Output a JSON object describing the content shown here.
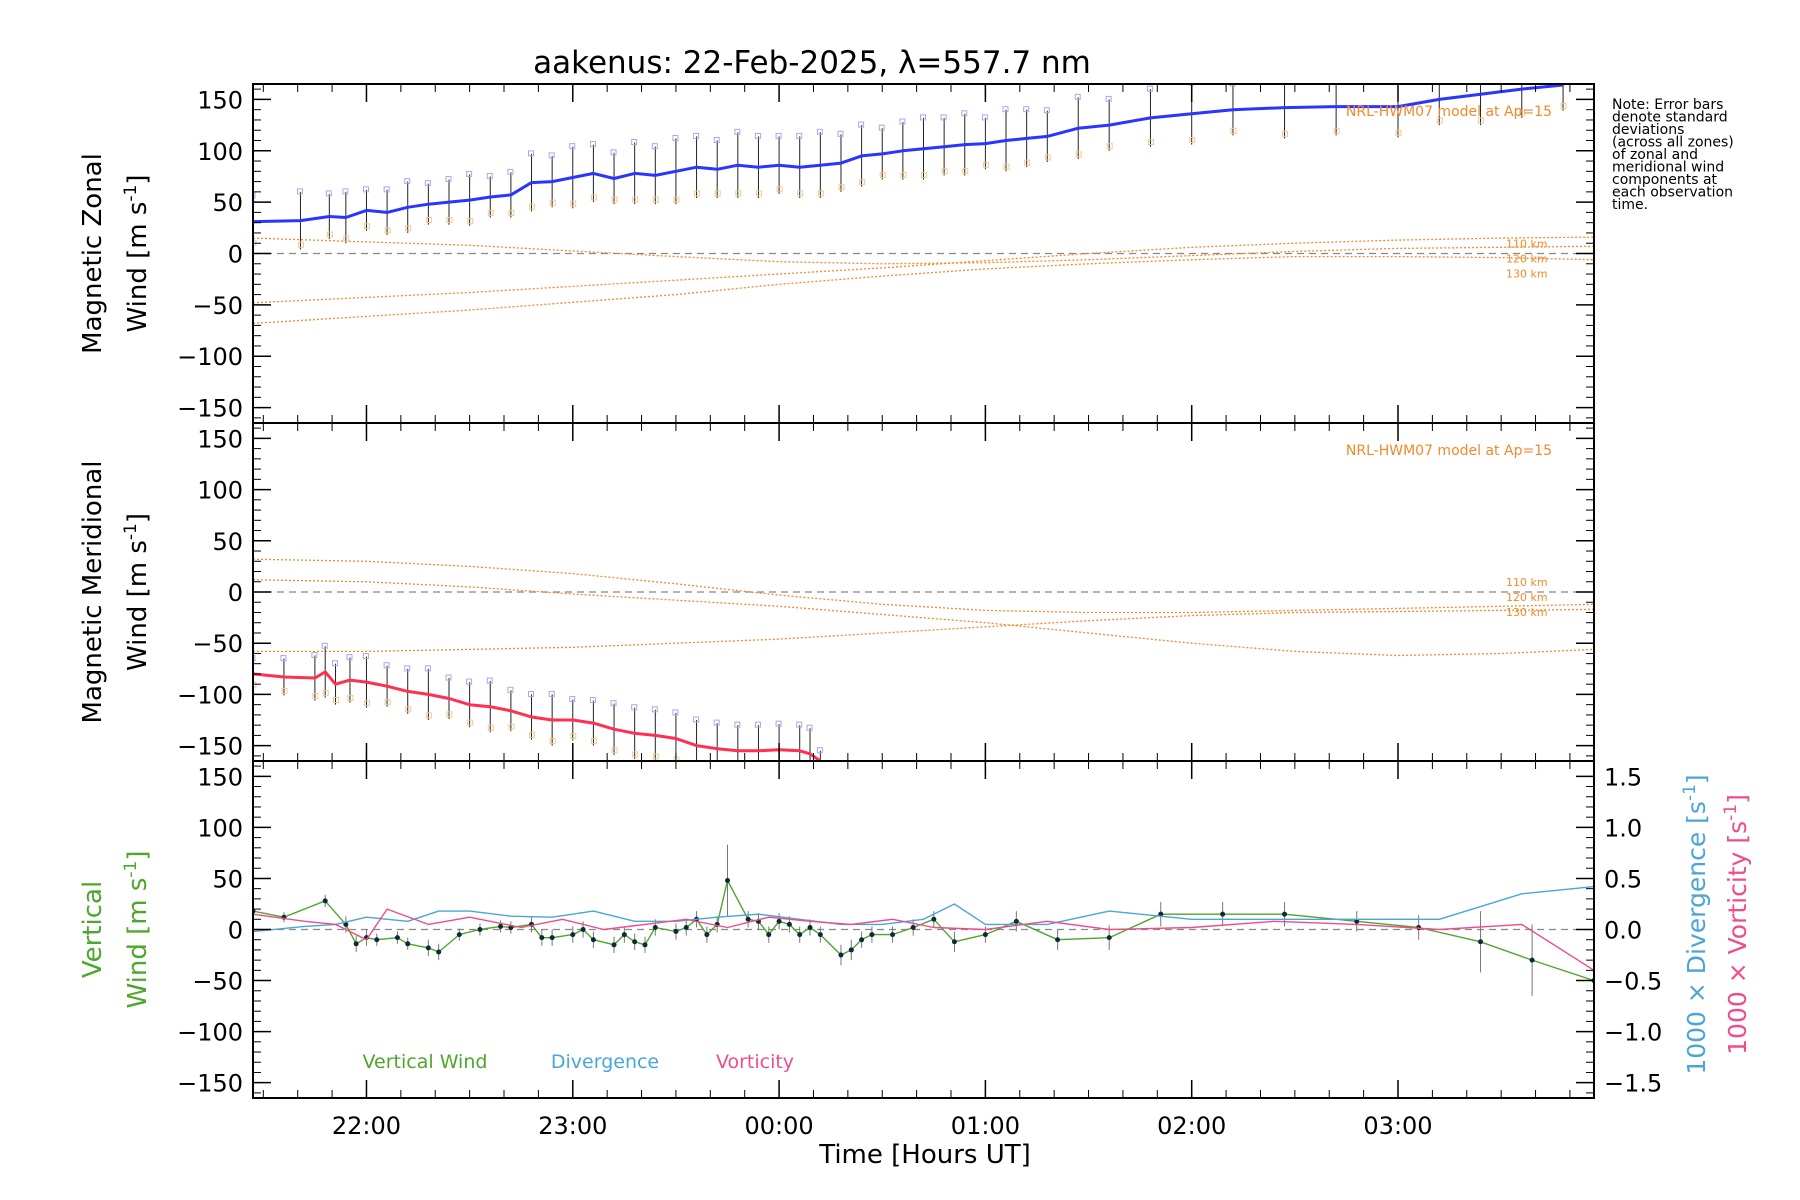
{
  "chart_data": {
    "title": "aakenus: 22-Feb-2025, λ=557.7 nm",
    "type": "line",
    "note": [
      "Note: Error bars",
      "denote standard",
      "deviations",
      "(across all zones)",
      "of zonal and",
      "meridional wind",
      "components at",
      "each observation",
      "time."
    ],
    "xlabel": "Time [Hours UT]",
    "xlim": [
      21.45,
      27.95
    ],
    "x_ticks": [
      {
        "value": 22,
        "label": "22:00"
      },
      {
        "value": 23,
        "label": "23:00"
      },
      {
        "value": 24,
        "label": "00:00"
      },
      {
        "value": 25,
        "label": "01:00"
      },
      {
        "value": 26,
        "label": "02:00"
      },
      {
        "value": 27,
        "label": "03:00"
      }
    ],
    "ylim": [
      -165,
      165
    ],
    "y_ticks": [
      150,
      100,
      50,
      0,
      -50,
      -100,
      -150
    ],
    "y_tick_labels": [
      "150",
      "100",
      "50",
      "0",
      "−50",
      "−100",
      "−150"
    ],
    "colors": {
      "zonal": "#2a35ff",
      "meridional": "#ff3050",
      "model": "#f08a2c",
      "vertical": "#4ea62c",
      "divergence": "#4aa6d6",
      "vorticity": "#ee4c8c",
      "zero": "#888888"
    },
    "panels": [
      {
        "name": "zonal",
        "ylabel_line1": "Magnetic Zonal",
        "ylabel_line2": "Wind [m s",
        "ylabel_sup": "-1",
        "ylabel_close": "]",
        "model_label": "NRL-HWM07 model at Ap=15",
        "model_altitudes": [
          "110 km",
          "120 km",
          "130 km"
        ],
        "model_curves": [
          {
            "name": "110 km",
            "x": [
              21.45,
              22.5,
              23.5,
              24.0,
              24.5,
              25.0,
              25.5,
              26.0,
              26.5,
              27.0,
              27.5,
              27.95
            ],
            "values": [
              15,
              8,
              -3,
              -8,
              -10,
              -9,
              -6,
              -2,
              2,
              5,
              6,
              7
            ]
          },
          {
            "name": "120 km",
            "x": [
              21.45,
              22.5,
              23.5,
              24.0,
              24.5,
              25.0,
              25.5,
              26.0,
              26.5,
              27.0,
              27.5,
              27.95
            ],
            "values": [
              -48,
              -38,
              -26,
              -20,
              -14,
              -7,
              0,
              6,
              10,
              13,
              15,
              16
            ]
          },
          {
            "name": "130 km",
            "x": [
              21.45,
              22.5,
              23.5,
              24.0,
              24.5,
              25.0,
              25.5,
              26.0,
              26.5,
              27.0,
              27.5,
              27.95
            ],
            "values": [
              -68,
              -55,
              -40,
              -30,
              -22,
              -15,
              -10,
              -6,
              -3,
              -3,
              -4,
              -6
            ]
          }
        ],
        "series": [
          {
            "name": "Magnetic Zonal Wind",
            "x": [
              21.45,
              21.68,
              21.82,
              21.9,
              22.0,
              22.1,
              22.2,
              22.3,
              22.4,
              22.5,
              22.6,
              22.7,
              22.8,
              22.9,
              23.0,
              23.1,
              23.2,
              23.3,
              23.4,
              23.5,
              23.6,
              23.7,
              23.8,
              23.9,
              24.0,
              24.1,
              24.2,
              24.3,
              24.4,
              24.5,
              24.6,
              24.7,
              24.8,
              24.9,
              25.0,
              25.1,
              25.2,
              25.3,
              25.45,
              25.6,
              25.8,
              26.0,
              26.2,
              26.45,
              26.7,
              27.0,
              27.2,
              27.4,
              27.6,
              27.8
            ],
            "values": [
              31,
              32,
              36,
              35,
              42,
              40,
              45,
              48,
              50,
              52,
              55,
              57,
              69,
              70,
              74,
              78,
              73,
              78,
              76,
              80,
              84,
              82,
              86,
              84,
              86,
              84,
              86,
              88,
              95,
              97,
              100,
              102,
              104,
              106,
              107,
              110,
              112,
              114,
              122,
              125,
              132,
              136,
              140,
              142,
              143,
              143,
              150,
              155,
              160,
              164
            ],
            "yerr": [
              25,
              28,
              22,
              25,
              20,
              22,
              25,
              20,
              22,
              25,
              20,
              22,
              28,
              25,
              30,
              28,
              25,
              30,
              28,
              32,
              30,
              28,
              32,
              30,
              28,
              30,
              32,
              28,
              30,
              25,
              28,
              30,
              28,
              30,
              25,
              30,
              28,
              25,
              30,
              25,
              28,
              30,
              25,
              30,
              28,
              30,
              25,
              30,
              28,
              25
            ]
          }
        ]
      },
      {
        "name": "meridional",
        "ylabel_line1": "Magnetic Meridional",
        "ylabel_line2": "Wind [m s",
        "ylabel_sup": "-1",
        "ylabel_close": "]",
        "model_label": "NRL-HWM07 model at Ap=15",
        "model_altitudes": [
          "110 km",
          "120 km",
          "130 km"
        ],
        "model_curves": [
          {
            "name": "110 km",
            "x": [
              21.45,
              22.0,
              22.5,
              23.0,
              23.5,
              24.0,
              24.5,
              25.0,
              25.5,
              26.0,
              26.5,
              27.0,
              27.5,
              27.95
            ],
            "values": [
              32,
              30,
              25,
              18,
              8,
              -3,
              -12,
              -18,
              -20,
              -20,
              -18,
              -16,
              -14,
              -12
            ]
          },
          {
            "name": "120 km",
            "x": [
              21.45,
              22.0,
              22.5,
              23.0,
              23.5,
              24.0,
              24.5,
              25.0,
              25.5,
              26.0,
              26.5,
              27.0,
              27.5,
              27.95
            ],
            "values": [
              -58,
              -58,
              -56,
              -54,
              -50,
              -46,
              -40,
              -34,
              -28,
              -23,
              -20,
              -19,
              -18,
              -17
            ]
          },
          {
            "name": "130 km",
            "x": [
              21.45,
              22.0,
              22.5,
              23.0,
              23.5,
              24.0,
              24.5,
              25.0,
              25.5,
              26.0,
              26.5,
              27.0,
              27.5,
              27.95
            ],
            "values": [
              12,
              10,
              5,
              -2,
              -8,
              -14,
              -22,
              -30,
              -40,
              -50,
              -58,
              -62,
              -60,
              -56
            ]
          }
        ],
        "series": [
          {
            "name": "Magnetic Meridional Wind",
            "x": [
              21.45,
              21.6,
              21.75,
              21.8,
              21.85,
              21.92,
              22.0,
              22.1,
              22.2,
              22.3,
              22.4,
              22.5,
              22.6,
              22.7,
              22.8,
              22.9,
              23.0,
              23.1,
              23.2,
              23.3,
              23.4,
              23.5,
              23.6,
              23.7,
              23.8,
              23.9,
              24.0,
              24.1,
              24.15,
              24.2
            ],
            "values": [
              -80,
              -83,
              -84,
              -78,
              -90,
              -86,
              -88,
              -92,
              -97,
              -100,
              -104,
              -110,
              -112,
              -116,
              -122,
              -125,
              -125,
              -128,
              -134,
              -138,
              -140,
              -143,
              -150,
              -153,
              -155,
              -155,
              -154,
              -155,
              -158,
              -165
            ],
            "yerr": [
              15,
              18,
              22,
              25,
              20,
              22,
              25,
              20,
              22,
              25,
              20,
              22,
              25,
              20,
              22,
              25,
              20,
              22,
              25,
              25,
              25,
              25,
              25,
              25,
              25,
              25,
              25,
              25,
              25,
              10
            ]
          }
        ]
      },
      {
        "name": "vertical",
        "ylabel_line1": "Vertical",
        "ylabel_line2": "Wind [m s",
        "ylabel_sup": "-1",
        "ylabel_close": "]",
        "right_axis": {
          "ylim": [
            -1.65,
            1.65
          ],
          "ticks": [
            1.5,
            1.0,
            0.5,
            0.0,
            -0.5,
            -1.0,
            -1.5
          ],
          "tick_labels": [
            "1.5",
            "1.0",
            "0.5",
            "0.0",
            "−0.5",
            "−1.0",
            "−1.5"
          ],
          "label_divergence": "1000 × Divergence [s",
          "label_vorticity": "1000 × Vorticity [s",
          "sup": "-1",
          "close": "]"
        },
        "legend": [
          "Vertical Wind",
          "Divergence",
          "Vorticity"
        ],
        "series": [
          {
            "name": "Vertical Wind",
            "x": [
              21.45,
              21.6,
              21.8,
              21.9,
              21.95,
              22.0,
              22.05,
              22.15,
              22.2,
              22.3,
              22.35,
              22.45,
              22.55,
              22.65,
              22.7,
              22.8,
              22.85,
              22.9,
              23.0,
              23.05,
              23.1,
              23.2,
              23.25,
              23.3,
              23.35,
              23.4,
              23.5,
              23.55,
              23.6,
              23.65,
              23.7,
              23.75,
              23.85,
              23.9,
              23.95,
              24.0,
              24.05,
              24.1,
              24.15,
              24.2,
              24.3,
              24.35,
              24.4,
              24.45,
              24.55,
              24.65,
              24.75,
              24.85,
              25.0,
              25.15,
              25.35,
              25.6,
              25.85,
              26.15,
              26.45,
              26.8,
              27.1,
              27.4,
              27.65,
              27.95
            ],
            "values": [
              18,
              12,
              28,
              5,
              -14,
              -8,
              -10,
              -8,
              -14,
              -18,
              -22,
              -5,
              0,
              3,
              2,
              5,
              -8,
              -8,
              -5,
              0,
              -10,
              -15,
              -5,
              -12,
              -15,
              2,
              -2,
              2,
              10,
              -5,
              5,
              48,
              10,
              8,
              -5,
              8,
              5,
              -5,
              2,
              -5,
              -25,
              -20,
              -10,
              -5,
              -5,
              2,
              10,
              -12,
              -5,
              8,
              -10,
              -8,
              15,
              15,
              15,
              8,
              2,
              -12,
              -30,
              -50
            ],
            "yerr": [
              5,
              5,
              6,
              8,
              8,
              8,
              6,
              6,
              6,
              8,
              8,
              6,
              6,
              6,
              6,
              8,
              8,
              8,
              8,
              8,
              8,
              8,
              8,
              8,
              8,
              8,
              8,
              8,
              8,
              8,
              8,
              35,
              8,
              8,
              8,
              8,
              8,
              8,
              8,
              8,
              10,
              10,
              8,
              8,
              8,
              8,
              8,
              10,
              8,
              10,
              10,
              12,
              12,
              12,
              12,
              10,
              12,
              30,
              35,
              5
            ]
          },
          {
            "name": "Divergence",
            "axis": "right",
            "x": [
              21.45,
              21.7,
              21.85,
              22.0,
              22.2,
              22.35,
              22.5,
              22.7,
              22.9,
              23.1,
              23.3,
              23.5,
              23.7,
              23.9,
              24.1,
              24.3,
              24.5,
              24.7,
              24.85,
              25.0,
              25.3,
              25.6,
              26.0,
              26.4,
              26.8,
              27.2,
              27.6,
              27.95
            ],
            "values": [
              -0.02,
              0.03,
              0.05,
              0.12,
              0.08,
              0.18,
              0.18,
              0.13,
              0.12,
              0.18,
              0.08,
              0.08,
              0.12,
              0.15,
              0.1,
              0.05,
              0.05,
              0.1,
              0.25,
              0.05,
              0.05,
              0.18,
              0.1,
              0.1,
              0.1,
              0.1,
              0.35,
              0.42
            ]
          },
          {
            "name": "Vorticity",
            "axis": "right",
            "x": [
              21.45,
              21.7,
              21.85,
              22.0,
              22.1,
              22.3,
              22.5,
              22.75,
              22.95,
              23.15,
              23.35,
              23.55,
              23.75,
              23.95,
              24.15,
              24.35,
              24.55,
              24.75,
              25.0,
              25.3,
              25.6,
              26.0,
              26.4,
              26.8,
              27.2,
              27.6,
              27.95
            ],
            "values": [
              0.15,
              0.08,
              0.05,
              -0.1,
              0.2,
              0.05,
              0.12,
              0.02,
              0.1,
              0.0,
              0.05,
              0.1,
              0.02,
              0.12,
              0.08,
              0.05,
              0.1,
              0.02,
              0.0,
              0.08,
              0.0,
              0.02,
              0.08,
              0.05,
              0.0,
              0.05,
              -0.4
            ]
          }
        ]
      }
    ]
  }
}
